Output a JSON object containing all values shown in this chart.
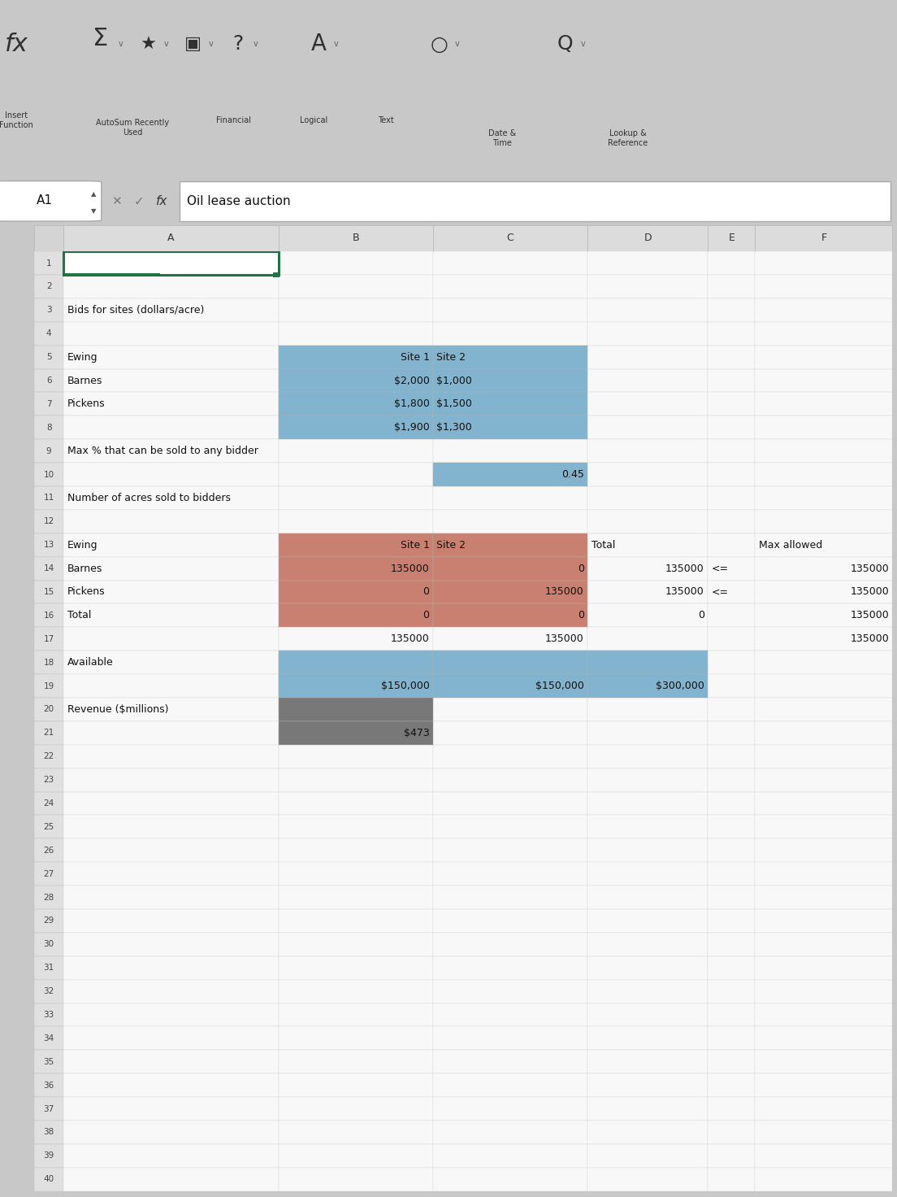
{
  "fig_bg": "#c8c8c8",
  "toolbar_bg": "#e4e4e4",
  "formula_bg": "#f2f2f2",
  "header_bg": "#e0e0e0",
  "cell_bg": "#f5f5f5",
  "cell_border": "#d0d0d0",
  "row_header_bg": "#e8e8e8",
  "blue_highlight": "#82b4d0",
  "red_highlight": "#c98070",
  "gray_highlight": "#787878",
  "green_border_color": "#217346",
  "row_count": 40,
  "col_names": [
    "A",
    "B",
    "C",
    "D",
    "E",
    "F"
  ],
  "col_rel_widths": [
    2.5,
    1.8,
    1.8,
    1.4,
    0.55,
    1.6
  ],
  "cells": {
    "1_A": {
      "text": "Oil lease auction",
      "bold": true,
      "ha": "left",
      "indent": 4
    },
    "3_A": {
      "text": "Bids for sites (dollars/acre)",
      "bold": false,
      "ha": "left",
      "indent": 4
    },
    "5_A": {
      "text": "Ewing",
      "bold": false,
      "ha": "left",
      "indent": 4
    },
    "5_B": {
      "text": "Site 1",
      "bold": false,
      "ha": "right",
      "indent": 4
    },
    "5_C": {
      "text": "Site 2",
      "bold": false,
      "ha": "left",
      "indent": 4
    },
    "6_A": {
      "text": "Barnes",
      "bold": false,
      "ha": "left",
      "indent": 4
    },
    "6_B": {
      "text": "$2,000",
      "bold": false,
      "ha": "right",
      "indent": 4
    },
    "6_C": {
      "text": "$1,000",
      "bold": false,
      "ha": "left",
      "indent": 4
    },
    "7_A": {
      "text": "Pickens",
      "bold": false,
      "ha": "left",
      "indent": 4
    },
    "7_B": {
      "text": "$1,800",
      "bold": false,
      "ha": "right",
      "indent": 4
    },
    "7_C": {
      "text": "$1,500",
      "bold": false,
      "ha": "left",
      "indent": 4
    },
    "8_B": {
      "text": "$1,900",
      "bold": false,
      "ha": "right",
      "indent": 4
    },
    "8_C": {
      "text": "$1,300",
      "bold": false,
      "ha": "left",
      "indent": 4
    },
    "9_A": {
      "text": "Max % that can be sold to any bidder",
      "bold": false,
      "ha": "left",
      "indent": 4
    },
    "10_C": {
      "text": "0.45",
      "bold": false,
      "ha": "right",
      "indent": 4
    },
    "11_A": {
      "text": "Number of acres sold to bidders",
      "bold": false,
      "ha": "left",
      "indent": 4
    },
    "13_A": {
      "text": "Ewing",
      "bold": false,
      "ha": "left",
      "indent": 4
    },
    "13_B": {
      "text": "Site 1",
      "bold": false,
      "ha": "right",
      "indent": 4
    },
    "13_C": {
      "text": "Site 2",
      "bold": false,
      "ha": "left",
      "indent": 4
    },
    "13_D": {
      "text": "Total",
      "bold": false,
      "ha": "left",
      "indent": 4
    },
    "13_F": {
      "text": "Max allowed",
      "bold": false,
      "ha": "left",
      "indent": 4
    },
    "14_A": {
      "text": "Barnes",
      "bold": false,
      "ha": "left",
      "indent": 4
    },
    "14_B": {
      "text": "135000",
      "bold": false,
      "ha": "right",
      "indent": 4
    },
    "14_C": {
      "text": "0",
      "bold": false,
      "ha": "right",
      "indent": 4
    },
    "14_D": {
      "text": "135000",
      "bold": false,
      "ha": "right",
      "indent": 4
    },
    "14_E": {
      "text": "<=",
      "bold": false,
      "ha": "left",
      "indent": 4
    },
    "14_F": {
      "text": "135000",
      "bold": false,
      "ha": "right",
      "indent": 4
    },
    "15_A": {
      "text": "Pickens",
      "bold": false,
      "ha": "left",
      "indent": 4
    },
    "15_B": {
      "text": "0",
      "bold": false,
      "ha": "right",
      "indent": 4
    },
    "15_C": {
      "text": "135000",
      "bold": false,
      "ha": "right",
      "indent": 4
    },
    "15_D": {
      "text": "135000",
      "bold": false,
      "ha": "right",
      "indent": 4
    },
    "15_E": {
      "text": "<=",
      "bold": false,
      "ha": "left",
      "indent": 4
    },
    "15_F": {
      "text": "135000",
      "bold": false,
      "ha": "right",
      "indent": 4
    },
    "16_A": {
      "text": "Total",
      "bold": false,
      "ha": "left",
      "indent": 4
    },
    "16_B": {
      "text": "0",
      "bold": false,
      "ha": "right",
      "indent": 4
    },
    "16_C": {
      "text": "0",
      "bold": false,
      "ha": "right",
      "indent": 4
    },
    "16_D": {
      "text": "0",
      "bold": false,
      "ha": "right",
      "indent": 4
    },
    "16_F": {
      "text": "135000",
      "bold": false,
      "ha": "right",
      "indent": 4
    },
    "17_B": {
      "text": "135000",
      "bold": false,
      "ha": "right",
      "indent": 4
    },
    "17_C": {
      "text": "135000",
      "bold": false,
      "ha": "right",
      "indent": 4
    },
    "17_F": {
      "text": "135000",
      "bold": false,
      "ha": "right",
      "indent": 4
    },
    "18_A": {
      "text": "Available",
      "bold": false,
      "ha": "left",
      "indent": 4
    },
    "19_B": {
      "text": "$150,000",
      "bold": false,
      "ha": "right",
      "indent": 4
    },
    "19_C": {
      "text": "$150,000",
      "bold": false,
      "ha": "right",
      "indent": 4
    },
    "19_D": {
      "text": "$300,000",
      "bold": false,
      "ha": "right",
      "indent": 4
    },
    "20_A": {
      "text": "Revenue ($millions)",
      "bold": false,
      "ha": "left",
      "indent": 4
    },
    "21_B": {
      "text": "$473",
      "bold": false,
      "ha": "right",
      "indent": 4
    }
  },
  "blue_regions": [
    {
      "rows": [
        5,
        6,
        7,
        8
      ],
      "cols": [
        "B",
        "C"
      ]
    },
    {
      "rows": [
        10
      ],
      "cols": [
        "C"
      ]
    },
    {
      "rows": [
        18,
        19
      ],
      "cols": [
        "B",
        "C",
        "D"
      ]
    }
  ],
  "red_regions": [
    {
      "rows": [
        13,
        14,
        15,
        16
      ],
      "cols": [
        "B",
        "C"
      ]
    }
  ],
  "gray_regions": [
    {
      "rows": [
        20,
        21
      ],
      "cols": [
        "B"
      ]
    }
  ]
}
